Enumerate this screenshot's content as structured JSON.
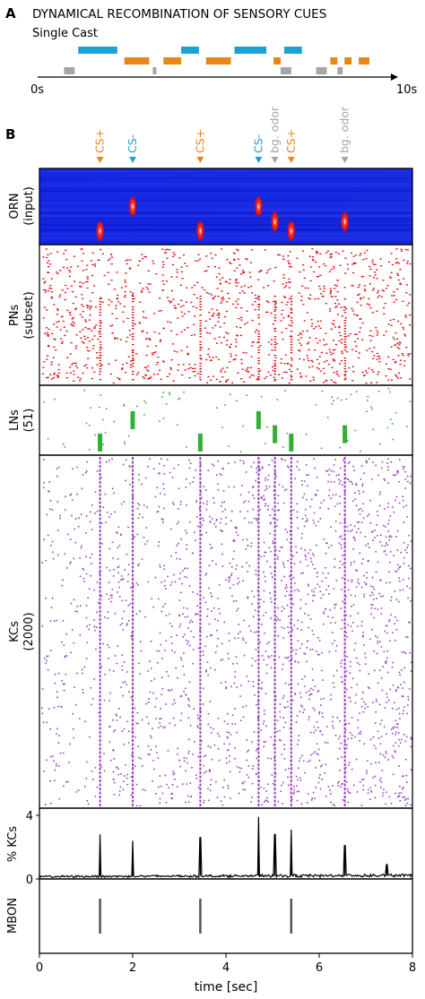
{
  "colors": {
    "cs_plus": "#e8861a",
    "cs_minus": "#1ba1d8",
    "bg_odor": "#a6a6a6",
    "orn_bg": "#1020e8",
    "orn_hot": "#e01010",
    "pn": "#e01010",
    "ln": "#33b033",
    "kc": "#9a3fc0",
    "mbon": "#555555",
    "trace": "#000000"
  },
  "panel_a": {
    "letter": "A",
    "title": "DYNAMICAL RECOMBINATION OF SENSORY CUES",
    "subtitle": "Single Cast",
    "axis_start": "0s",
    "axis_end": "10s",
    "bars": {
      "cs_minus": [
        [
          1.9,
          3.0
        ],
        [
          4.8,
          5.3
        ],
        [
          6.3,
          7.2
        ],
        [
          7.7,
          8.2
        ]
      ],
      "cs_plus": [
        [
          3.2,
          3.9
        ],
        [
          4.3,
          4.8
        ],
        [
          5.5,
          6.2
        ],
        [
          7.4,
          7.6
        ],
        [
          9.0,
          9.2
        ],
        [
          9.4,
          9.6
        ],
        [
          9.8,
          10.1
        ]
      ],
      "bg_odor": [
        [
          1.5,
          1.8
        ],
        [
          4.0,
          4.1
        ],
        [
          7.6,
          7.9
        ],
        [
          8.6,
          8.9
        ],
        [
          9.2,
          9.35
        ]
      ]
    }
  },
  "panel_b": {
    "letter": "B",
    "events": [
      {
        "label": "CS+",
        "t": 1.3,
        "kind": "cs_plus"
      },
      {
        "label": "CS-",
        "t": 2.0,
        "kind": "cs_minus"
      },
      {
        "label": "CS+",
        "t": 3.45,
        "kind": "cs_plus"
      },
      {
        "label": "CS-",
        "t": 4.7,
        "kind": "cs_minus"
      },
      {
        "label": "bg. odor",
        "t": 5.05,
        "kind": "bg_odor"
      },
      {
        "label": "CS+",
        "t": 5.4,
        "kind": "cs_plus"
      },
      {
        "label": "bg. odor",
        "t": 6.55,
        "kind": "bg_odor"
      }
    ],
    "rows": {
      "orn_label": "ORN\n(input)",
      "pn_label": "PNs\n(subset)",
      "ln_label": "LNs\n(51)",
      "kc_label": "KCs\n(2000)",
      "pct_label": "% KCs",
      "mbon_label": "MBON"
    }
  },
  "chart_data": {
    "type": "line",
    "xlabel": "time [sec]",
    "xlim": [
      0,
      8
    ],
    "xticks": [
      0,
      2,
      4,
      6,
      8
    ],
    "series": [
      {
        "name": "% KCs",
        "ylim": [
          0,
          4
        ],
        "yticks": [
          0,
          4
        ],
        "peaks": [
          {
            "t": 1.3,
            "value": 2.8
          },
          {
            "t": 2.0,
            "value": 2.4
          },
          {
            "t": 3.45,
            "value": 2.6
          },
          {
            "t": 4.7,
            "value": 3.9
          },
          {
            "t": 5.05,
            "value": 2.8
          },
          {
            "t": 5.4,
            "value": 3.1
          },
          {
            "t": 6.55,
            "value": 2.1
          },
          {
            "t": 7.45,
            "value": 0.9
          }
        ],
        "baseline": 0.15
      },
      {
        "name": "MBON",
        "spikes": [
          1.3,
          3.45,
          5.4
        ]
      }
    ],
    "orn_blobs": [
      {
        "t": 1.3,
        "row": 0.82
      },
      {
        "t": 2.0,
        "row": 0.5
      },
      {
        "t": 3.45,
        "row": 0.82
      },
      {
        "t": 4.7,
        "row": 0.5
      },
      {
        "t": 5.05,
        "row": 0.7
      },
      {
        "t": 5.4,
        "row": 0.82
      },
      {
        "t": 6.55,
        "row": 0.7
      }
    ],
    "ln_bursts": [
      {
        "t": 1.3,
        "row": 0.82
      },
      {
        "t": 2.0,
        "row": 0.5
      },
      {
        "t": 3.45,
        "row": 0.82
      },
      {
        "t": 4.7,
        "row": 0.5
      },
      {
        "t": 5.05,
        "row": 0.7
      },
      {
        "t": 5.4,
        "row": 0.82
      },
      {
        "t": 6.55,
        "row": 0.7
      }
    ],
    "kc_population_lines": [
      1.3,
      2.0,
      3.45,
      4.7,
      5.05,
      5.4,
      6.55
    ]
  }
}
